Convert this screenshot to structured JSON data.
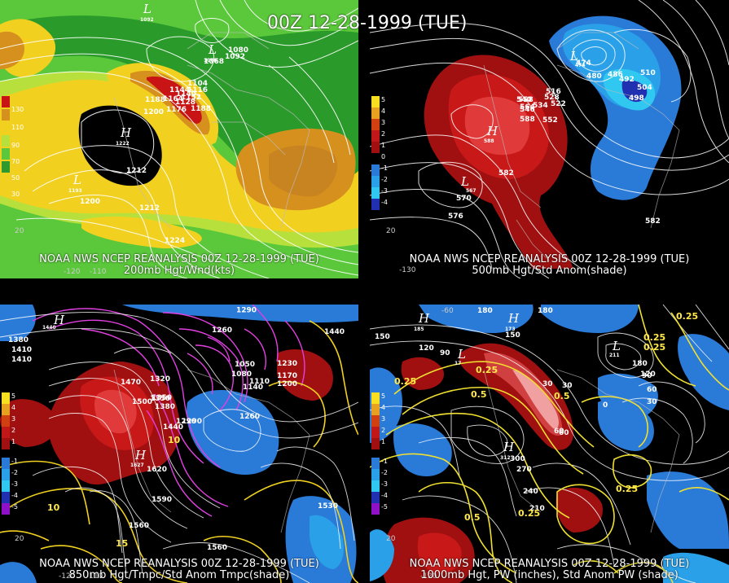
{
  "title": "00Z 12-28-1999 (TUE)",
  "panels": {
    "p200": {
      "caption_line1": "NOAA NWS NCEP REANALYSIS 00Z 12-28-1999 (TUE)",
      "caption_line2": "200mb Hgt/Wnd(kts)",
      "legend": [
        "130",
        "110",
        "90",
        "70",
        "50",
        "30"
      ],
      "legend_colors": [
        "#c81414",
        "#d6901e",
        "#f2d020",
        "#b8e03c",
        "#5ac83a",
        "#2e9a2e"
      ],
      "contour_labels": [
        "1092",
        "1080",
        "1068",
        "1144",
        "1188",
        "1164",
        "1200",
        "1176",
        "1212",
        "1200",
        "1212",
        "1224",
        "1188",
        "1152",
        "1140",
        "1104",
        "1116",
        "1128"
      ],
      "centers": [
        "L",
        "L",
        "H",
        "L"
      ],
      "center_values": [
        "1092",
        "1068",
        "1222",
        "1193"
      ],
      "lon_labels": [
        "-120",
        "-110"
      ],
      "lat_labels": [
        "20"
      ]
    },
    "p500": {
      "caption_line1": "NOAA NWS NCEP REANALYSIS 00Z 12-28-1999 (TUE)",
      "caption_line2": "500mb Hgt/Std Anom(shade)",
      "legend": [
        "5",
        "4",
        "3",
        "2",
        "1",
        "0",
        "-1",
        "-2",
        "-3",
        "-4",
        "-5"
      ],
      "legend_colors": [
        "#f8e020",
        "#e8a020",
        "#d04010",
        "#c01818",
        "#a01010",
        "#000000",
        "#2a7ad8",
        "#2aa0e8",
        "#30c8f0",
        "#2030b0",
        "#9010c8"
      ],
      "contour_labels": [
        "474",
        "480",
        "486",
        "492",
        "498",
        "504",
        "510",
        "516",
        "522",
        "528",
        "534",
        "540",
        "546",
        "552",
        "558",
        "564",
        "570",
        "576",
        "582",
        "582",
        "588"
      ],
      "centers": [
        "L",
        "H",
        "L"
      ],
      "center_values": [
        "474",
        "588",
        "567"
      ],
      "lon_labels": [
        "-130"
      ],
      "lat_labels": [
        "20"
      ]
    },
    "p850": {
      "caption_line1": "NOAA NWS NCEP REANALYSIS 00Z 12-28-1999 (TUE)",
      "caption_line2": "850mb Hgt/Tmpc/Std Anom Tmpc(shade)",
      "legend": [
        "5",
        "4",
        "3",
        "2",
        "1",
        "-1",
        "-2",
        "-3",
        "-4",
        "-5"
      ],
      "legend_colors": [
        "#f8e020",
        "#e8a020",
        "#d04010",
        "#c01818",
        "#a01010",
        "#2a7ad8",
        "#2aa0e8",
        "#30c8f0",
        "#2030b0",
        "#9010c8"
      ],
      "contour_labels": [
        "1290",
        "1440",
        "1410",
        "1380",
        "1350",
        "1320",
        "1470",
        "1500",
        "1350",
        "1380",
        "1440",
        "1290",
        "1260",
        "1230",
        "1200",
        "1170",
        "1140",
        "1110",
        "1080",
        "1050",
        "1260",
        "1290",
        "1590",
        "1560",
        "1560",
        "1530",
        "1620",
        "1410"
      ],
      "centers": [
        "H",
        "H"
      ],
      "center_values": [
        "1440",
        "1627"
      ],
      "temp_labels": [
        "10",
        "15",
        "10"
      ],
      "lon_labels": [
        "-110",
        "-120"
      ],
      "lat_labels": [
        "20"
      ]
    },
    "p1000": {
      "caption_line1": "NOAA NWS NCEP REANALYSIS 00Z 12-28-1999 (TUE)",
      "caption_line2": "1000mb Hgt, PW (inches), Std Anom PW (shade)",
      "legend": [
        "5",
        "4",
        "3",
        "2",
        "1",
        "-1",
        "-2",
        "-3",
        "-4",
        "-5"
      ],
      "legend_colors": [
        "#f8e020",
        "#e8a020",
        "#d04010",
        "#c01818",
        "#a01010",
        "#2a7ad8",
        "#2aa0e8",
        "#30c8f0",
        "#2030b0",
        "#9010c8"
      ],
      "contour_labels": [
        "180",
        "150",
        "120",
        "90",
        "60",
        "30",
        "0",
        "30",
        "60",
        "90",
        "120",
        "150",
        "180",
        "270",
        "300",
        "240",
        "210",
        "180",
        "30",
        "60"
      ],
      "pw_labels": [
        "0.25",
        "0.5",
        "0.25",
        "0.25",
        "0.5",
        "0.25",
        "0.25",
        "0.5",
        "0.25",
        "0.25"
      ],
      "centers": [
        "H",
        "H",
        "H",
        "L",
        "L"
      ],
      "center_values": [
        "185",
        "312",
        "173",
        "211",
        "17"
      ],
      "lon_labels": [
        "-120",
        "-60"
      ],
      "lat_labels": [
        "20"
      ]
    }
  }
}
